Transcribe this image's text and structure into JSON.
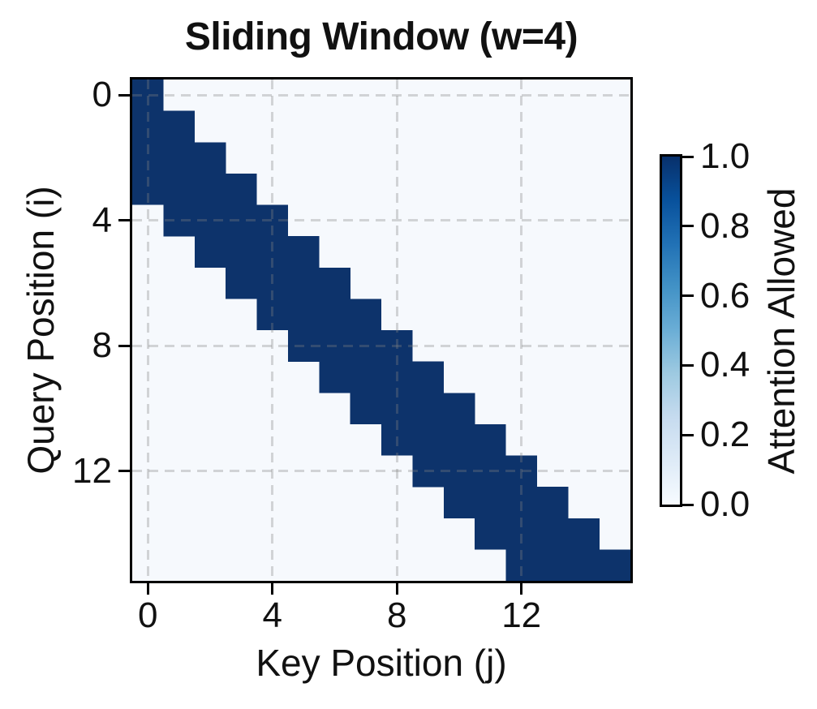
{
  "chart_data": {
    "type": "heatmap",
    "title": "Sliding Window (w=4)",
    "xlabel": "Key Position (j)",
    "ylabel": "Query Position (i)",
    "colorbar_label": "Attention Allowed",
    "n_rows": 16,
    "n_cols": 16,
    "window_size": 4,
    "value_range": [
      0.0,
      1.0
    ],
    "x_ticks": [
      0,
      4,
      8,
      12
    ],
    "y_ticks": [
      0,
      4,
      8,
      12
    ],
    "colorbar_ticks": [
      {
        "value": 1.0,
        "label": "1.0"
      },
      {
        "value": 0.8,
        "label": "0.8"
      },
      {
        "value": 0.6,
        "label": "0.6"
      },
      {
        "value": 0.4,
        "label": "0.4"
      },
      {
        "value": 0.2,
        "label": "0.2"
      },
      {
        "value": 0.0,
        "label": "0.0"
      }
    ],
    "matrix": [
      "1000000000000000",
      "1100000000000000",
      "1110000000000000",
      "1111000000000000",
      "0111100000000000",
      "0011110000000000",
      "0001111000000000",
      "0000111100000000",
      "0000011110000000",
      "0000001111000000",
      "0000000111100000",
      "0000000011110000",
      "0000000001111000",
      "0000000000111100",
      "0000000000011110",
      "0000000000001111"
    ],
    "grid": true,
    "legend_position": "colorbar-right",
    "colors": {
      "value_one": "#0d336b",
      "value_zero": "#f6f9fd",
      "gridline": "rgba(130,130,130,0.32)",
      "axis": "#000000",
      "text": "#111111",
      "colormap_name": "Blues",
      "colormap_stops": [
        "#f7fbff",
        "#deebf7",
        "#c6dbef",
        "#9ecae1",
        "#6baed6",
        "#4292c6",
        "#2171b5",
        "#08519c",
        "#08306b"
      ]
    }
  }
}
